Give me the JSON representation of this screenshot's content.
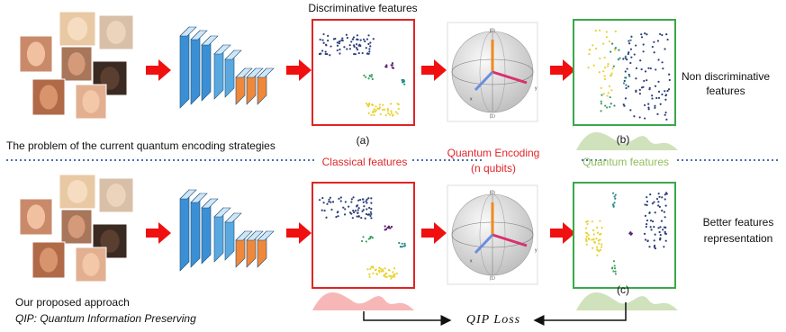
{
  "header": {
    "top_label": "Discriminative features"
  },
  "top_row": {
    "caption_a": "(a)",
    "caption_b": "(b)",
    "right_note": [
      "Non discriminative",
      "features"
    ]
  },
  "divider": {
    "problem": "The problem of the current quantum encoding strategies",
    "classical": "Classical features",
    "encoding": [
      "Quantum Encoding",
      "(n qubits)"
    ],
    "quantum": "Quantum features"
  },
  "bottom_row": {
    "caption_c": "(c)",
    "right_note": [
      "Better features",
      "representation"
    ]
  },
  "proposal": {
    "line1": "Our proposed approach",
    "line2": "QIP: Quantum Information Preserving"
  },
  "loss": "QIP Loss",
  "bloch": {
    "top": "|0⟩",
    "bottom": "|1⟩",
    "x": "x",
    "y": "y"
  }
}
